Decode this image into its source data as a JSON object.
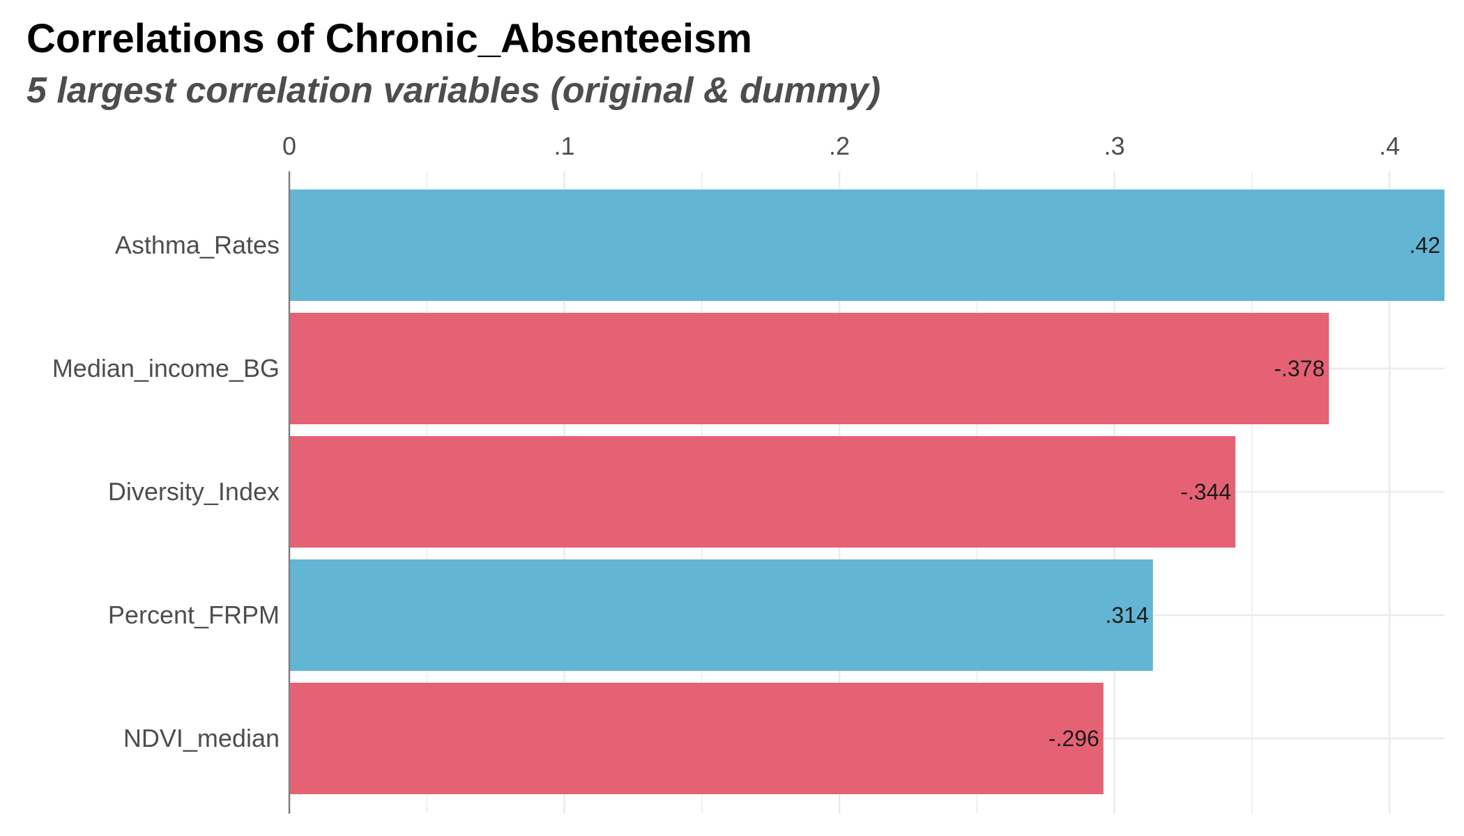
{
  "chart_data": {
    "type": "bar",
    "orientation": "horizontal",
    "title": "Correlations of Chronic_Absenteeism",
    "subtitle": "5 largest correlation variables (original & dummy)",
    "xlabel": "",
    "ylabel": "",
    "xlim": [
      0,
      0.42
    ],
    "x_ticks": [
      0,
      0.1,
      0.2,
      0.3,
      0.4
    ],
    "x_tick_labels": [
      "0",
      ".1",
      ".2",
      ".3",
      ".4"
    ],
    "x_axis_position": "top",
    "grid": true,
    "legend": "none",
    "categories": [
      "Asthma_Rates",
      "Median_income_BG",
      "Diversity_Index",
      "Percent_FRPM",
      "NDVI_median"
    ],
    "values": [
      0.42,
      0.378,
      0.344,
      0.314,
      0.296
    ],
    "correlations": [
      0.42,
      -0.378,
      -0.344,
      0.314,
      -0.296
    ],
    "value_labels": [
      ".42",
      "-.378",
      "-.344",
      ".314",
      "-.296"
    ],
    "colors": {
      "positive": "#62b6d4",
      "negative": "#e56274",
      "grid": "#ebebeb",
      "axis": "#7f7f7f",
      "tick_text": "#4d4d4d",
      "value_text": "#1a1a1a"
    }
  }
}
